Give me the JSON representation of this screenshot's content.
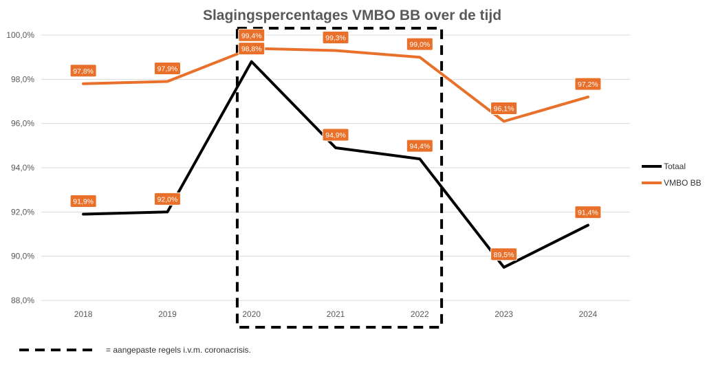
{
  "chart_data": {
    "type": "line",
    "title": "Slagingspercentages VMBO BB over de tijd",
    "xlabel": "",
    "ylabel": "",
    "categories": [
      "2018",
      "2019",
      "2020",
      "2021",
      "2022",
      "2023",
      "2024"
    ],
    "y_ticks": [
      "88,0%",
      "90,0%",
      "92,0%",
      "94,0%",
      "96,0%",
      "98,0%",
      "100,0%"
    ],
    "ylim": [
      88,
      100
    ],
    "grid": true,
    "legend_position": "right",
    "series": [
      {
        "name": "Totaal",
        "color": "#000000",
        "values": [
          91.9,
          92.0,
          98.8,
          94.9,
          94.4,
          89.5,
          91.4
        ],
        "labels": [
          "91,9%",
          "92,0%",
          "98,8%",
          "94,9%",
          "94,4%",
          "89,5%",
          "91,4%"
        ]
      },
      {
        "name": "VMBO BB",
        "color": "#E8702A",
        "values": [
          97.8,
          97.9,
          99.4,
          99.3,
          99.0,
          96.1,
          97.2
        ],
        "labels": [
          "97,8%",
          "97,9%",
          "99,4%",
          "99,3%",
          "99,0%",
          "96,1%",
          "97,2%"
        ]
      }
    ],
    "highlight": {
      "from": "2020",
      "to": "2022",
      "style": "dashed-box",
      "note": "= aangepaste regels i.v.m. coronacrisis."
    }
  }
}
